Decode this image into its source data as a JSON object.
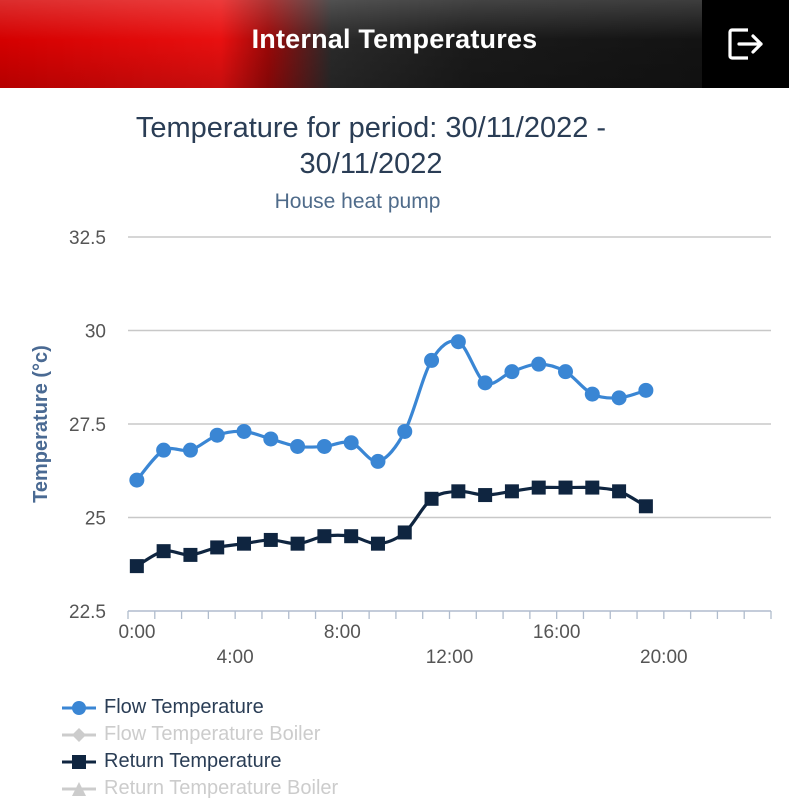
{
  "header": {
    "title": "Internal Temperatures",
    "logout_icon": "logout-icon"
  },
  "colors": {
    "flow": "#3a86d4",
    "return": "#0f2540",
    "boiler": "#cccccc",
    "axis_label": "#4a6a93",
    "title": "#2a3d55"
  },
  "chart_data": {
    "type": "line",
    "title": "Temperature for period: 30/11/2022 -",
    "title_line2": "30/11/2022",
    "subtitle": "House heat pump",
    "ylabel": "Temperature (°c)",
    "ylim": [
      22.5,
      32.5
    ],
    "y_ticks": [
      "22.5",
      "25",
      "27.5",
      "30",
      "32.5"
    ],
    "xlim": [
      0,
      24
    ],
    "x_ticks": [
      "0:00",
      "4:00",
      "8:00",
      "12:00",
      "16:00",
      "20:00"
    ],
    "grid": true,
    "legend_position": "bottom-left",
    "series": [
      {
        "name": "Flow Temperature",
        "marker": "circle",
        "visible": true,
        "x": [
          0,
          1,
          2,
          3,
          4,
          5,
          6,
          7,
          8,
          9,
          10,
          11,
          12,
          13,
          14,
          15,
          16,
          17,
          18,
          19
        ],
        "values": [
          26.0,
          26.8,
          26.8,
          27.2,
          27.3,
          27.1,
          26.9,
          26.9,
          27.0,
          26.5,
          27.3,
          29.2,
          29.7,
          28.6,
          28.9,
          29.1,
          28.9,
          28.3,
          28.2,
          28.4
        ]
      },
      {
        "name": "Flow Temperature Boiler",
        "marker": "diamond",
        "visible": false,
        "x": [],
        "values": []
      },
      {
        "name": "Return Temperature",
        "marker": "square",
        "visible": true,
        "x": [
          0,
          1,
          2,
          3,
          4,
          5,
          6,
          7,
          8,
          9,
          10,
          11,
          12,
          13,
          14,
          15,
          16,
          17,
          18,
          19
        ],
        "values": [
          23.7,
          24.1,
          24.0,
          24.2,
          24.3,
          24.4,
          24.3,
          24.5,
          24.5,
          24.3,
          24.6,
          25.5,
          25.7,
          25.6,
          25.7,
          25.8,
          25.8,
          25.8,
          25.7,
          25.3
        ]
      },
      {
        "name": "Return Temperature Boiler",
        "marker": "triangle",
        "visible": false,
        "x": [],
        "values": []
      }
    ]
  }
}
